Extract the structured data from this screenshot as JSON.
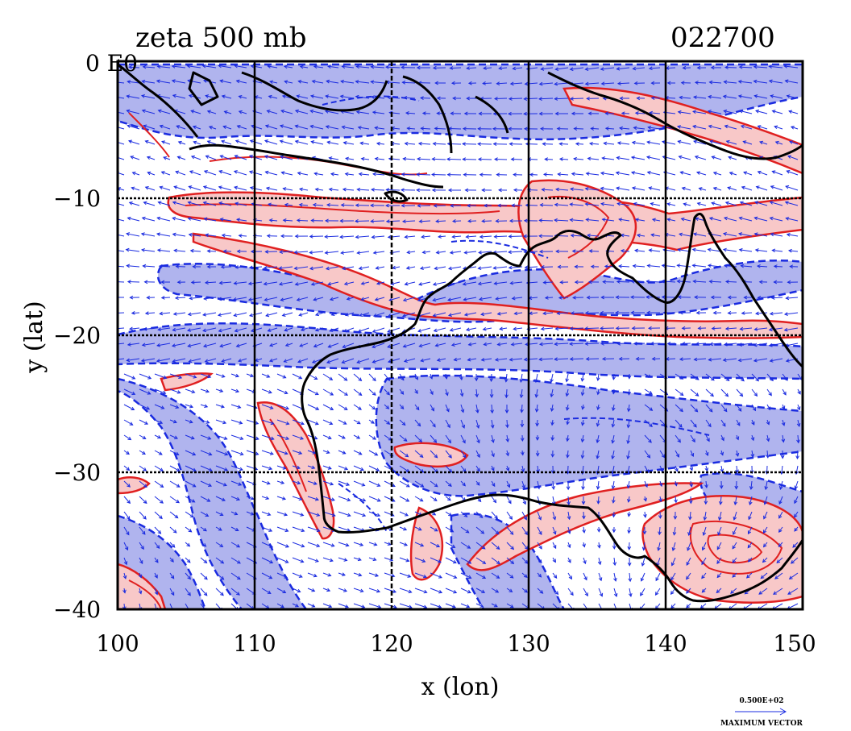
{
  "title_left": "zeta 500 mb",
  "title_right": "022700",
  "corner_label": "0 E0",
  "xlabel": "x (lon)",
  "ylabel": "y (lat)",
  "x_ticks": [
    "100",
    "110",
    "120",
    "130",
    "140",
    "150"
  ],
  "y_ticks": [
    "−10",
    "−20",
    "−30",
    "−40"
  ],
  "chart_data": {
    "type": "heatmap",
    "title": "zeta 500 mb",
    "subtitle": "022700",
    "xlabel": "x (lon)",
    "ylabel": "y (lat)",
    "xlim": [
      100,
      150
    ],
    "ylim": [
      -40,
      0
    ],
    "grid": true,
    "grid_lon": [
      110,
      120,
      130,
      140
    ],
    "grid_lat": [
      -10,
      -20,
      -30
    ],
    "colors": {
      "positive_fill": "#f8c8c8",
      "positive_contour": "#e02020",
      "negative_fill": "#b0b4ee",
      "negative_contour": "#1a2be0",
      "vectors": "#1a2be0",
      "coastline": "#000000"
    },
    "bands": [
      {
        "sign": "positive",
        "lat": -10.8,
        "width": 1.6
      },
      {
        "sign": "negative",
        "lat": -17.5,
        "width": 2.0
      },
      {
        "sign": "positive",
        "lat": -19.0,
        "width": 0.8
      },
      {
        "sign": "negative",
        "lat": -21.5,
        "width": 1.4
      },
      {
        "sign": "negative",
        "lat": -26.0,
        "width": 2.5
      }
    ],
    "vector_legend": {
      "value": "0.500E+02",
      "label": "MAXIMUM VECTOR"
    }
  }
}
